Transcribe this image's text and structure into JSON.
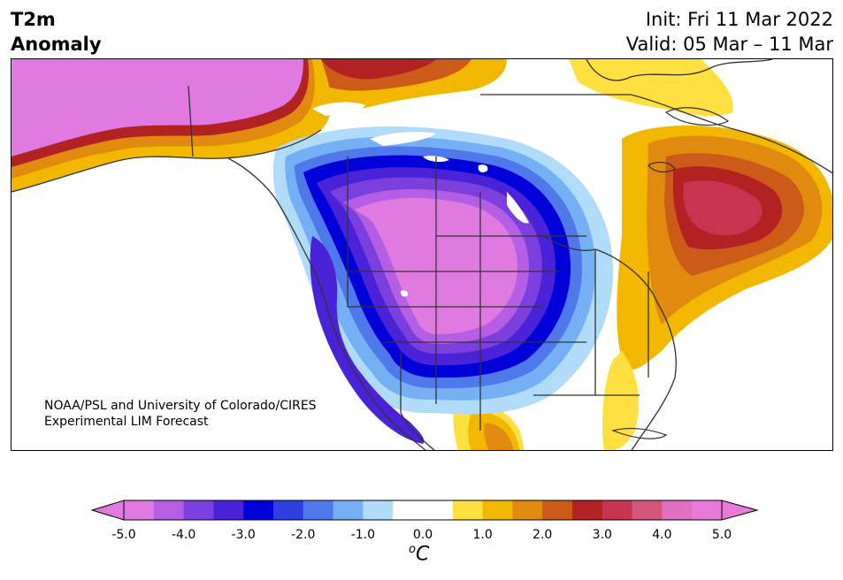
{
  "header": {
    "title_line1": "T2m",
    "title_line2": "Anomaly",
    "init_text": "Init: Fri 11 Mar 2022",
    "valid_text": "Valid: 05 Mar – 11 Mar"
  },
  "map": {
    "region": "North America",
    "credit_line1": "NOAA/PSL and University of Colorado/CIRES",
    "credit_line2": "Experimental LIM Forecast"
  },
  "colorbar": {
    "unit_base": "C",
    "unit_sup": "o",
    "tick_labels": [
      "-5.0",
      "-4.0",
      "-3.0",
      "-2.0",
      "-1.0",
      "0.0",
      "1.0",
      "2.0",
      "3.0",
      "4.0",
      "5.0"
    ],
    "colors": [
      "#e07ae0",
      "#b45ee6",
      "#7a3fdc",
      "#4a22d8",
      "#0000d8",
      "#2e3fe0",
      "#4f78ea",
      "#76b0f4",
      "#b0dcfa",
      "#ffffff",
      "#ffffff",
      "#ffe040",
      "#f2b800",
      "#e08a10",
      "#cc5a18",
      "#b22222",
      "#c73450",
      "#d4567a",
      "#e070c0",
      "#e87ad8"
    ],
    "min_extend_color": "#e07ae0",
    "max_extend_color": "#e87ad8"
  }
}
